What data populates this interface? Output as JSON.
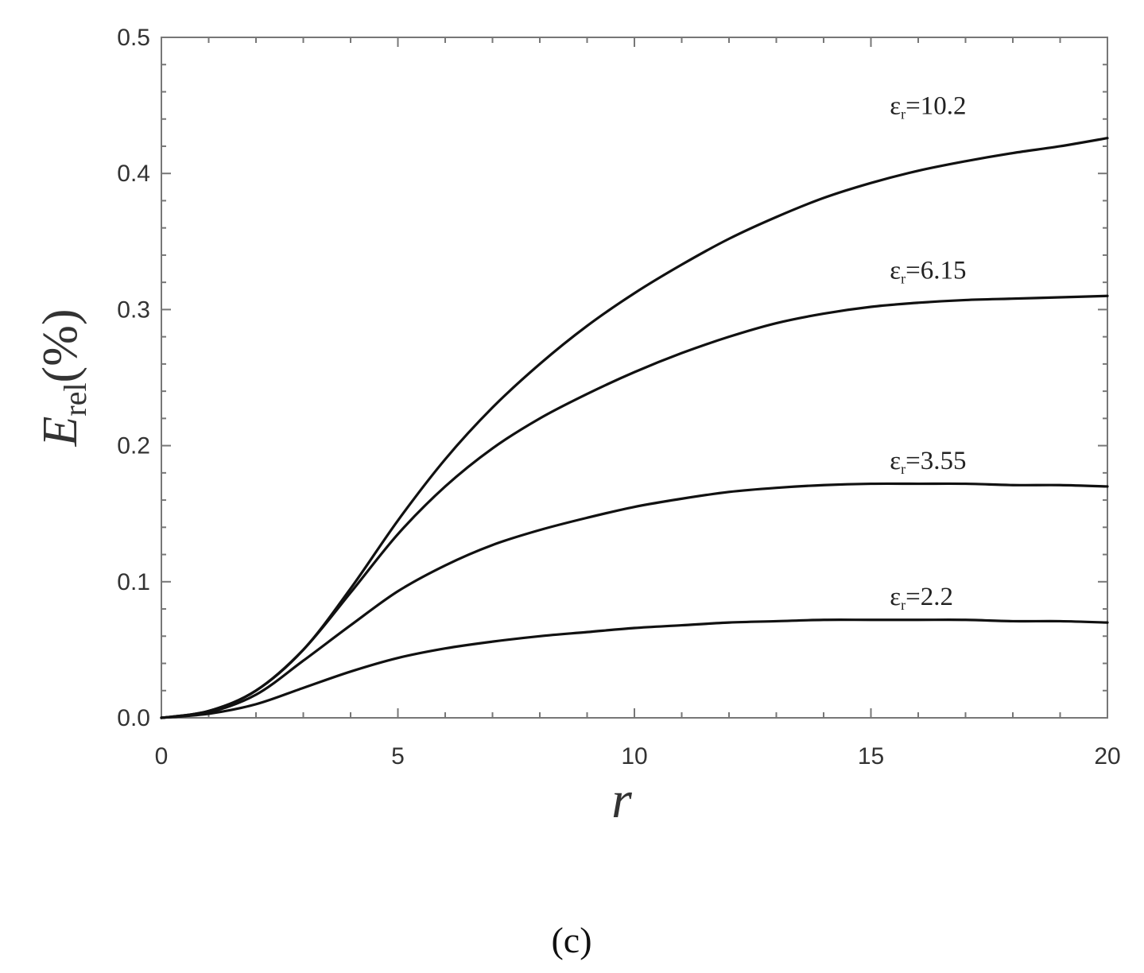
{
  "panel_label": "(c)",
  "chart_data": {
    "type": "line",
    "xlabel": "r",
    "ylabel_main": "E",
    "ylabel_sub": "rel",
    "ylabel_tail": "(%)",
    "xlim": [
      0,
      20
    ],
    "ylim": [
      0.0,
      0.5
    ],
    "x_ticks": [
      "0",
      "5",
      "10",
      "15",
      "20"
    ],
    "y_ticks": [
      "0.0",
      "0.1",
      "0.2",
      "0.3",
      "0.4",
      "0.5"
    ],
    "grid": false,
    "legend": "inline labels at right end of curves",
    "x": [
      0,
      1,
      2,
      3,
      4,
      5,
      6,
      7,
      8,
      9,
      10,
      11,
      12,
      13,
      14,
      15,
      16,
      17,
      18,
      19,
      20
    ],
    "series": [
      {
        "name": "ε_r=10.2",
        "label_main": "ε",
        "label_sub": "r",
        "label_tail": "=10.2",
        "values": [
          0.0,
          0.005,
          0.02,
          0.05,
          0.095,
          0.145,
          0.19,
          0.228,
          0.26,
          0.288,
          0.312,
          0.333,
          0.352,
          0.368,
          0.382,
          0.393,
          0.402,
          0.409,
          0.415,
          0.42,
          0.426
        ]
      },
      {
        "name": "ε_r=6.15",
        "label_main": "ε",
        "label_sub": "r",
        "label_tail": "=6.15",
        "values": [
          0.0,
          0.005,
          0.02,
          0.05,
          0.092,
          0.135,
          0.17,
          0.198,
          0.22,
          0.238,
          0.254,
          0.268,
          0.28,
          0.29,
          0.297,
          0.302,
          0.305,
          0.307,
          0.308,
          0.309,
          0.31
        ]
      },
      {
        "name": "ε_r=3.55",
        "label_main": "ε",
        "label_sub": "r",
        "label_tail": "=3.55",
        "values": [
          0.0,
          0.004,
          0.017,
          0.042,
          0.068,
          0.093,
          0.112,
          0.127,
          0.138,
          0.147,
          0.155,
          0.161,
          0.166,
          0.169,
          0.171,
          0.172,
          0.172,
          0.172,
          0.171,
          0.171,
          0.17
        ]
      },
      {
        "name": "ε_r=2.2",
        "label_main": "ε",
        "label_sub": "r",
        "label_tail": "=2.2",
        "values": [
          0.0,
          0.003,
          0.01,
          0.022,
          0.034,
          0.044,
          0.051,
          0.056,
          0.06,
          0.063,
          0.066,
          0.068,
          0.07,
          0.071,
          0.072,
          0.072,
          0.072,
          0.072,
          0.071,
          0.071,
          0.07
        ]
      }
    ]
  }
}
